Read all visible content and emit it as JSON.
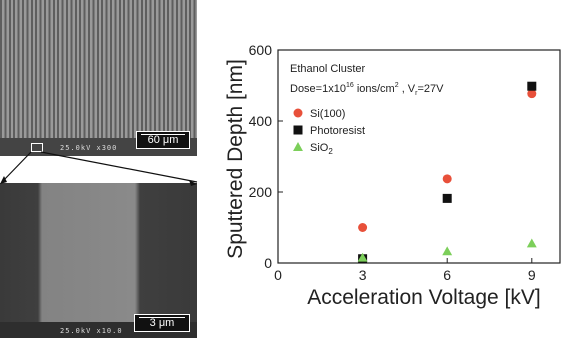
{
  "sem_top": {
    "info": "25.0kV  x300",
    "scale_label": "60 μm"
  },
  "sem_bottom": {
    "info": "25.0kV  x10.0",
    "scale_label": "3 μm"
  },
  "chart_data": {
    "type": "scatter",
    "xlabel": "Acceleration Voltage [kV]",
    "ylabel": "Sputtered Depth [nm]",
    "xlim": [
      0,
      10
    ],
    "ylim": [
      0,
      600
    ],
    "x_ticks": [
      0,
      3,
      6,
      9
    ],
    "y_ticks": [
      0,
      200,
      400,
      600
    ],
    "grid": false,
    "legend_position": "top-left",
    "annotation": {
      "title": "Ethanol Cluster",
      "dose_prefix": "Dose=1x10",
      "dose_exp": "16",
      "dose_unit": " ions/cm",
      "dose_sup": "2",
      "vr_text": " , V",
      "vr_sub": "r",
      "vr_value": "=27V"
    },
    "series": [
      {
        "name": "Si(100)",
        "marker": "circle",
        "color": "#e8503a",
        "x": [
          3,
          6,
          9
        ],
        "y": [
          100,
          237,
          477
        ]
      },
      {
        "name": "Photoresist",
        "marker": "square",
        "color": "#111111",
        "x": [
          3,
          6,
          9
        ],
        "y": [
          12,
          182,
          498
        ]
      },
      {
        "name": "SiO2",
        "marker": "triangle",
        "color": "#7ccf5a",
        "x": [
          3,
          6,
          9
        ],
        "y": [
          15,
          33,
          55
        ]
      }
    ]
  }
}
